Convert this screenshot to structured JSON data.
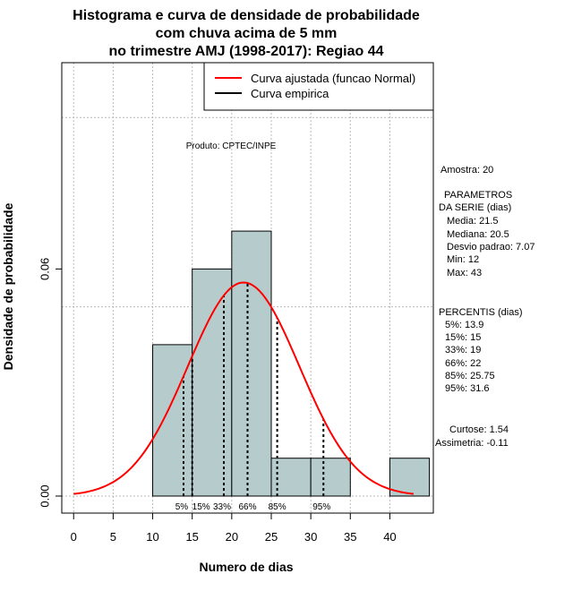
{
  "chart_data": {
    "type": "bar",
    "title_lines": [
      "Histograma e curva de densidade de probabilidade",
      "com chuva acima de 5 mm",
      "no trimestre AMJ (1998-2017): Regiao 44"
    ],
    "xlabel": "Numero de dias",
    "ylabel": "Densidade de probabilidade",
    "xlim": [
      -1.5,
      45.5
    ],
    "ylim": [
      -0.0045,
      0.1145
    ],
    "x_ticks": [
      0,
      5,
      10,
      15,
      20,
      25,
      30,
      35,
      40
    ],
    "y_ticks": [
      0.0,
      0.06
    ],
    "y_tick_labels": [
      "0.00",
      "0.06"
    ],
    "grid_x": [
      0,
      5,
      10,
      15,
      20,
      25,
      30,
      35,
      40
    ],
    "grid_y": [
      0.0,
      0.05,
      0.1
    ],
    "bins": [
      {
        "start": 10,
        "end": 15,
        "density": 0.04
      },
      {
        "start": 15,
        "end": 20,
        "density": 0.06
      },
      {
        "start": 20,
        "end": 25,
        "density": 0.07
      },
      {
        "start": 25,
        "end": 30,
        "density": 0.01
      },
      {
        "start": 30,
        "end": 35,
        "density": 0.01
      },
      {
        "start": 35,
        "end": 40,
        "density": 0.0
      },
      {
        "start": 40,
        "end": 45,
        "density": 0.01
      }
    ],
    "normal_curve": {
      "mean": 21.5,
      "sd": 7.07,
      "x_from": 0,
      "x_to": 43
    },
    "percentile_lines": [
      {
        "label": "5%",
        "value": 13.9
      },
      {
        "label": "15%",
        "value": 15
      },
      {
        "label": "33%",
        "value": 19
      },
      {
        "label": "66%",
        "value": 22
      },
      {
        "label": "85%",
        "value": 25.75
      },
      {
        "label": "95%",
        "value": 31.6
      }
    ],
    "legend": [
      {
        "label": "Curva ajustada (funcao Normal)",
        "color": "#ff0000"
      },
      {
        "label": "Curva empirica",
        "color": "#000000"
      }
    ],
    "legend_position": "top-right",
    "bar_color": "#b6cccc",
    "curve_color": "#ff0000"
  },
  "annotations": {
    "product": "Produto: CPTEC/INPE",
    "sample": "Amostra: 20",
    "params_header_1": "PARAMETROS",
    "params_header_2": "DA SERIE (dias)",
    "params": [
      "Media: 21.5",
      "Mediana: 20.5",
      "Desvio padrao: 7.07",
      "Min: 12",
      "Max: 43"
    ],
    "percentis_header": "PERCENTIS (dias)",
    "percentis": [
      "5%: 13.9",
      "15%: 15",
      "33%: 19",
      "66%: 22",
      "85%: 25.75",
      "95%: 31.6"
    ],
    "curtose": "Curtose: 1.54",
    "assimetria": "Assimetria: -0.11"
  }
}
